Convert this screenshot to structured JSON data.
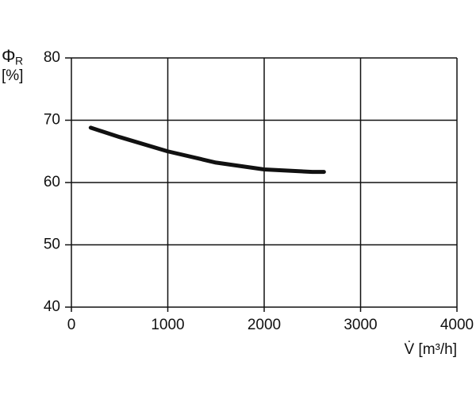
{
  "chart_data": {
    "type": "line",
    "y_label_symbol": "Φ",
    "y_label_subscript": "R",
    "y_label_unit": "[%]",
    "x_label": "V̇ [m³/h]",
    "series": [
      {
        "x": [
          200,
          500,
          1000,
          1500,
          2000,
          2500,
          2620
        ],
        "values": [
          68.8,
          67.3,
          65.0,
          63.2,
          62.1,
          61.7,
          61.7
        ],
        "color": "#111111"
      }
    ],
    "xlim": [
      0,
      4000
    ],
    "xticks": [
      0,
      1000,
      2000,
      3000,
      4000
    ],
    "ylim": [
      40,
      80
    ],
    "yticks": [
      40,
      50,
      60,
      70,
      80
    ],
    "grid": true
  }
}
